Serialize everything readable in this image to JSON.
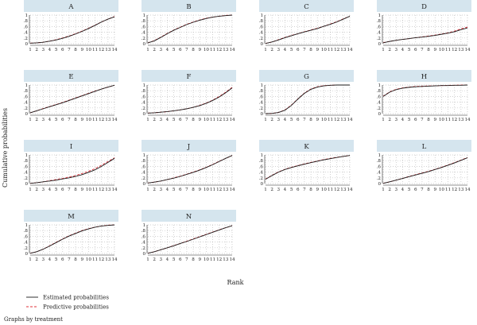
{
  "figure": {
    "y_axis_label": "Cumulative probabilities",
    "x_axis_label": "Rank",
    "note": "Graphs by treatment",
    "legend": [
      "Estimated probabilities",
      "Predictive probabilities"
    ],
    "colors": {
      "estimated": "#1a1a1a",
      "predictive": "#e0303a",
      "strip": "#d5e5ee"
    }
  },
  "chart_data": {
    "type": "line",
    "x": [
      1,
      2,
      3,
      4,
      5,
      6,
      7,
      8,
      9,
      10,
      11,
      12,
      13,
      14
    ],
    "xlim": [
      1,
      14
    ],
    "ylim": [
      0,
      1
    ],
    "yticks": [
      "0",
      ".2",
      ".4",
      ".6",
      ".8",
      "1"
    ],
    "grid": true,
    "legend_position": "bottom-left",
    "panels": [
      {
        "label": "A",
        "estimated": [
          0.02,
          0.03,
          0.05,
          0.09,
          0.13,
          0.19,
          0.26,
          0.34,
          0.43,
          0.53,
          0.64,
          0.76,
          0.86,
          0.94
        ],
        "predictive": [
          0.02,
          0.03,
          0.05,
          0.09,
          0.14,
          0.2,
          0.27,
          0.35,
          0.44,
          0.54,
          0.65,
          0.76,
          0.86,
          0.95
        ]
      },
      {
        "label": "B",
        "estimated": [
          0.03,
          0.1,
          0.22,
          0.35,
          0.47,
          0.57,
          0.67,
          0.75,
          0.82,
          0.88,
          0.93,
          0.96,
          0.98,
          1.0
        ],
        "predictive": [
          0.03,
          0.11,
          0.23,
          0.36,
          0.48,
          0.58,
          0.68,
          0.76,
          0.83,
          0.89,
          0.93,
          0.96,
          0.99,
          1.0
        ]
      },
      {
        "label": "C",
        "estimated": [
          0.01,
          0.06,
          0.13,
          0.21,
          0.28,
          0.35,
          0.41,
          0.47,
          0.53,
          0.61,
          0.68,
          0.76,
          0.86,
          0.96
        ],
        "predictive": [
          0.01,
          0.06,
          0.14,
          0.22,
          0.29,
          0.35,
          0.42,
          0.48,
          0.54,
          0.61,
          0.69,
          0.77,
          0.87,
          0.96
        ]
      },
      {
        "label": "D",
        "estimated": [
          0.03,
          0.08,
          0.12,
          0.15,
          0.18,
          0.21,
          0.23,
          0.26,
          0.29,
          0.33,
          0.37,
          0.42,
          0.49,
          0.55
        ],
        "predictive": [
          0.04,
          0.08,
          0.12,
          0.15,
          0.18,
          0.21,
          0.24,
          0.27,
          0.3,
          0.34,
          0.38,
          0.44,
          0.52,
          0.58
        ]
      },
      {
        "label": "E",
        "estimated": [
          0.03,
          0.1,
          0.17,
          0.24,
          0.31,
          0.38,
          0.46,
          0.54,
          0.62,
          0.7,
          0.78,
          0.86,
          0.93,
          0.99
        ],
        "predictive": [
          0.03,
          0.1,
          0.18,
          0.25,
          0.32,
          0.39,
          0.47,
          0.55,
          0.63,
          0.71,
          0.79,
          0.86,
          0.93,
          0.99
        ]
      },
      {
        "label": "F",
        "estimated": [
          0.02,
          0.03,
          0.05,
          0.07,
          0.1,
          0.13,
          0.17,
          0.22,
          0.28,
          0.36,
          0.46,
          0.58,
          0.73,
          0.9
        ],
        "predictive": [
          0.02,
          0.03,
          0.05,
          0.07,
          0.1,
          0.13,
          0.17,
          0.22,
          0.29,
          0.37,
          0.47,
          0.6,
          0.75,
          0.92
        ]
      },
      {
        "label": "G",
        "estimated": [
          0.0,
          0.01,
          0.04,
          0.12,
          0.29,
          0.51,
          0.71,
          0.85,
          0.93,
          0.97,
          0.99,
          1.0,
          1.0,
          1.0
        ],
        "predictive": [
          0.0,
          0.01,
          0.04,
          0.13,
          0.3,
          0.52,
          0.72,
          0.86,
          0.94,
          0.98,
          0.99,
          1.0,
          1.0,
          1.0
        ]
      },
      {
        "label": "H",
        "estimated": [
          0.6,
          0.75,
          0.84,
          0.89,
          0.92,
          0.94,
          0.95,
          0.96,
          0.97,
          0.98,
          0.98,
          0.99,
          0.99,
          1.0
        ],
        "predictive": [
          0.61,
          0.76,
          0.85,
          0.9,
          0.93,
          0.95,
          0.96,
          0.97,
          0.97,
          0.98,
          0.99,
          0.99,
          1.0,
          1.0
        ]
      },
      {
        "label": "I",
        "estimated": [
          0.01,
          0.03,
          0.06,
          0.09,
          0.12,
          0.16,
          0.2,
          0.25,
          0.31,
          0.39,
          0.48,
          0.6,
          0.74,
          0.88
        ],
        "predictive": [
          0.01,
          0.03,
          0.06,
          0.1,
          0.14,
          0.18,
          0.23,
          0.28,
          0.35,
          0.43,
          0.52,
          0.64,
          0.77,
          0.9
        ]
      },
      {
        "label": "J",
        "estimated": [
          0.02,
          0.05,
          0.09,
          0.14,
          0.19,
          0.25,
          0.32,
          0.39,
          0.47,
          0.56,
          0.66,
          0.77,
          0.88,
          0.98
        ],
        "predictive": [
          0.02,
          0.05,
          0.09,
          0.14,
          0.2,
          0.26,
          0.33,
          0.4,
          0.48,
          0.57,
          0.67,
          0.78,
          0.88,
          0.98
        ]
      },
      {
        "label": "K",
        "estimated": [
          0.15,
          0.28,
          0.4,
          0.49,
          0.56,
          0.62,
          0.68,
          0.73,
          0.78,
          0.83,
          0.87,
          0.91,
          0.95,
          0.98
        ],
        "predictive": [
          0.16,
          0.29,
          0.41,
          0.5,
          0.57,
          0.63,
          0.69,
          0.74,
          0.79,
          0.84,
          0.88,
          0.92,
          0.95,
          0.98
        ]
      },
      {
        "label": "L",
        "estimated": [
          0.01,
          0.06,
          0.12,
          0.18,
          0.24,
          0.3,
          0.36,
          0.42,
          0.49,
          0.56,
          0.64,
          0.72,
          0.81,
          0.9
        ],
        "predictive": [
          0.01,
          0.06,
          0.12,
          0.18,
          0.25,
          0.31,
          0.37,
          0.43,
          0.5,
          0.57,
          0.65,
          0.73,
          0.82,
          0.91
        ]
      },
      {
        "label": "M",
        "estimated": [
          0.01,
          0.06,
          0.15,
          0.26,
          0.38,
          0.5,
          0.61,
          0.7,
          0.79,
          0.86,
          0.92,
          0.96,
          0.98,
          1.0
        ],
        "predictive": [
          0.01,
          0.06,
          0.15,
          0.27,
          0.39,
          0.51,
          0.62,
          0.71,
          0.8,
          0.87,
          0.92,
          0.96,
          0.99,
          1.0
        ]
      },
      {
        "label": "N",
        "estimated": [
          0.01,
          0.06,
          0.13,
          0.2,
          0.27,
          0.35,
          0.42,
          0.5,
          0.58,
          0.66,
          0.74,
          0.82,
          0.9,
          0.97
        ],
        "predictive": [
          0.01,
          0.06,
          0.13,
          0.2,
          0.28,
          0.35,
          0.43,
          0.51,
          0.59,
          0.67,
          0.75,
          0.83,
          0.9,
          0.97
        ]
      }
    ]
  }
}
